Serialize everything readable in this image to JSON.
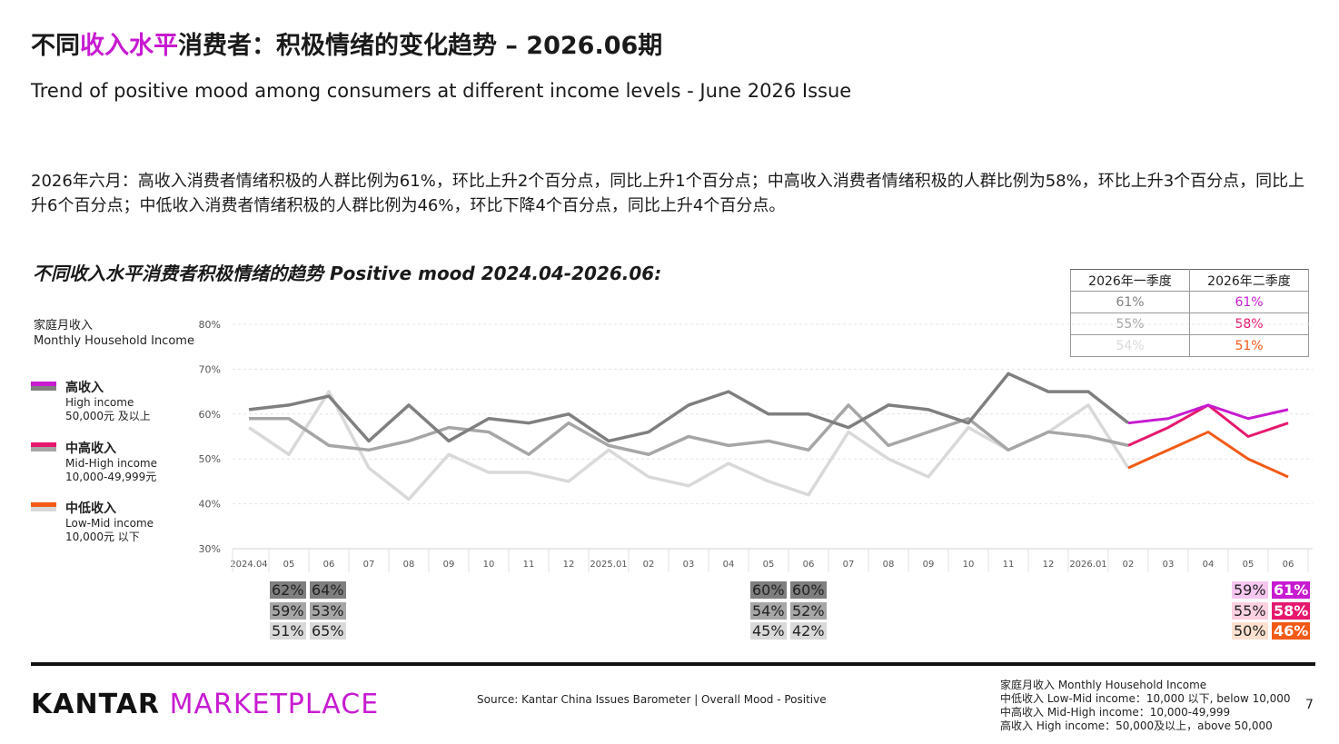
{
  "header": {
    "title_pre": "不同",
    "title_highlight": "收入水平",
    "title_post": "消费者：积极情绪的变化趋势 – 2026.06期",
    "subtitle": "Trend of positive mood among consumers at different income levels - June 2026 Issue"
  },
  "summary": "2026年六月：高收入消费者情绪积极的人群比例为61%，环比上升2个百分点，同比上升1个百分点；中高收入消费者情绪积极的人群比例为58%，环比上升3个百分点，同比上升6个百分点；中低收入消费者情绪积极的人群比例为46%，环比下降4个百分点，同比上升4个百分点。",
  "chart_title": "不同收入水平消费者积极情绪的趋势 Positive mood 2024.04-2026.06:",
  "legend": {
    "title_zh": "家庭月收入",
    "title_en": "Monthly Household Income",
    "items": [
      {
        "zh": "高收入",
        "en1": "High income",
        "en2": "50,000元 及以上"
      },
      {
        "zh": "中高收入",
        "en1": "Mid-High income",
        "en2": "10,000-49,999元"
      },
      {
        "zh": "中低收入",
        "en1": "Low-Mid income",
        "en2": "10,000元 以下"
      }
    ]
  },
  "quarter_table": {
    "headers": [
      "2026年一季度",
      "2026年二季度"
    ],
    "rows": [
      [
        "61%",
        "61%"
      ],
      [
        "55%",
        "58%"
      ],
      [
        "54%",
        "51%"
      ]
    ]
  },
  "colors": {
    "high_gray": "#7f7f7f",
    "midhigh_gray": "#a6a6a6",
    "lowmid_gray": "#d9d9d9",
    "high": "#c71bd1",
    "midhigh": "#e6186e",
    "lowmid": "#f25a16",
    "brand_magenta": "#c71bd1"
  },
  "chart_data": {
    "type": "line",
    "x": [
      "2024.04",
      "05",
      "06",
      "07",
      "08",
      "09",
      "10",
      "11",
      "12",
      "2025.01",
      "02",
      "03",
      "04",
      "05",
      "06",
      "07",
      "08",
      "09",
      "10",
      "11",
      "12",
      "2026.01",
      "02",
      "03",
      "04",
      "05",
      "06"
    ],
    "ylim": [
      30,
      80
    ],
    "yticks": [
      "30%",
      "40%",
      "50%",
      "60%",
      "70%",
      "80%"
    ],
    "grid": true,
    "highlight_start_index": 22,
    "series": [
      {
        "name": "高收入 High income",
        "values": [
          61,
          62,
          64,
          54,
          62,
          54,
          59,
          58,
          60,
          54,
          56,
          62,
          65,
          60,
          60,
          57,
          62,
          61,
          58,
          69,
          65,
          65,
          58,
          59,
          62,
          59,
          61
        ]
      },
      {
        "name": "中高收入 Mid-High income",
        "values": [
          59,
          59,
          53,
          52,
          54,
          57,
          56,
          51,
          58,
          53,
          51,
          55,
          53,
          54,
          52,
          62,
          53,
          56,
          59,
          52,
          56,
          55,
          53,
          57,
          62,
          55,
          58
        ]
      },
      {
        "name": "中低收入 Low-Mid income",
        "values": [
          57,
          51,
          65,
          48,
          41,
          51,
          47,
          47,
          45,
          52,
          46,
          44,
          49,
          45,
          42,
          56,
          50,
          46,
          57,
          52,
          56,
          62,
          48,
          52,
          56,
          50,
          46
        ]
      }
    ]
  },
  "value_labels": {
    "group1": {
      "high": [
        "62%",
        "64%"
      ],
      "midhigh": [
        "59%",
        "53%"
      ],
      "lowmid": [
        "51%",
        "65%"
      ]
    },
    "group2": {
      "high": [
        "60%",
        "60%"
      ],
      "midhigh": [
        "54%",
        "52%"
      ],
      "lowmid": [
        "45%",
        "42%"
      ]
    },
    "group3": {
      "high": [
        "59%",
        "61%"
      ],
      "midhigh": [
        "55%",
        "58%"
      ],
      "lowmid": [
        "50%",
        "46%"
      ]
    }
  },
  "footer": {
    "logo_black": "KANTAR",
    "logo_magenta": "MARKETPLACE",
    "source": "Source:  Kantar China Issues Barometer | Overall Mood - Positive",
    "footnote": [
      "家庭月收入 Monthly Household Income",
      "中低收入 Low-Mid income：10,000 以下, below 10,000",
      "中高收入 Mid-High income：10,000-49,999",
      "高收入 High income：50,000及以上，above 50,000"
    ],
    "page": "7"
  }
}
